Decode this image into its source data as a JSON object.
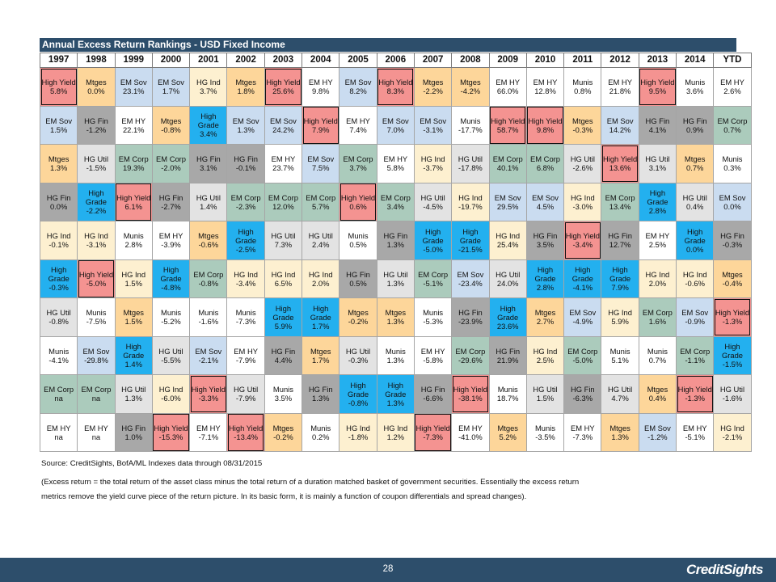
{
  "colors": {
    "High Yield": "#f49391",
    "Mtges": "#fdd69a",
    "EM Sov": "#cadcf0",
    "EM HY": "#ffffff",
    "HG Ind": "#fdf0d0",
    "High Grade": "#23b0ef",
    "HG Util": "#e3e3e3",
    "HG Fin": "#a8a8a8",
    "EM Corp": "#abcbbc",
    "Munis": "#ffffff"
  },
  "chart_data": {
    "type": "table",
    "title": "Annual Excess Return Rankings - USD Fixed Income",
    "years": [
      "1997",
      "1998",
      "1999",
      "2000",
      "2001",
      "2002",
      "2003",
      "2004",
      "2005",
      "2006",
      "2007",
      "2008",
      "2009",
      "2010",
      "2011",
      "2012",
      "2013",
      "2014",
      "YTD"
    ],
    "rows": [
      [
        [
          "High Yield",
          "5.8%"
        ],
        [
          "Mtges",
          "0.0%"
        ],
        [
          "EM Sov",
          "23.1%"
        ],
        [
          "EM Sov",
          "1.7%"
        ],
        [
          "HG Ind",
          "3.7%"
        ],
        [
          "Mtges",
          "1.8%"
        ],
        [
          "High Yield",
          "25.6%"
        ],
        [
          "EM HY",
          "9.8%"
        ],
        [
          "EM Sov",
          "8.2%"
        ],
        [
          "High Yield",
          "8.3%"
        ],
        [
          "Mtges",
          "-2.2%"
        ],
        [
          "Mtges",
          "-4.2%"
        ],
        [
          "EM HY",
          "66.0%"
        ],
        [
          "EM HY",
          "12.8%"
        ],
        [
          "Munis",
          "0.8%"
        ],
        [
          "EM HY",
          "21.8%"
        ],
        [
          "High Yield",
          "9.5%"
        ],
        [
          "Munis",
          "3.6%"
        ],
        [
          "EM HY",
          "2.6%"
        ]
      ],
      [
        [
          "EM Sov",
          "1.5%"
        ],
        [
          "HG Fin",
          "-1.2%"
        ],
        [
          "EM HY",
          "22.1%"
        ],
        [
          "Mtges",
          "-0.8%"
        ],
        [
          "High Grade",
          "3.4%"
        ],
        [
          "EM Sov",
          "1.3%"
        ],
        [
          "EM Sov",
          "24.2%"
        ],
        [
          "High Yield",
          "7.9%"
        ],
        [
          "EM HY",
          "7.4%"
        ],
        [
          "EM Sov",
          "7.0%"
        ],
        [
          "EM Sov",
          "-3.1%"
        ],
        [
          "Munis",
          "-17.7%"
        ],
        [
          "High Yield",
          "58.7%"
        ],
        [
          "High Yield",
          "9.8%"
        ],
        [
          "Mtges",
          "-0.3%"
        ],
        [
          "EM Sov",
          "14.2%"
        ],
        [
          "HG Fin",
          "4.1%"
        ],
        [
          "HG Fin",
          "0.9%"
        ],
        [
          "EM Corp",
          "0.7%"
        ]
      ],
      [
        [
          "Mtges",
          "1.3%"
        ],
        [
          "HG Util",
          "-1.5%"
        ],
        [
          "EM Corp",
          "19.3%"
        ],
        [
          "EM Corp",
          "-2.0%"
        ],
        [
          "HG Fin",
          "3.1%"
        ],
        [
          "HG Fin",
          "-0.1%"
        ],
        [
          "EM HY",
          "23.7%"
        ],
        [
          "EM Sov",
          "7.5%"
        ],
        [
          "EM Corp",
          "3.7%"
        ],
        [
          "EM HY",
          "5.8%"
        ],
        [
          "HG Ind",
          "-3.7%"
        ],
        [
          "HG Util",
          "-17.8%"
        ],
        [
          "EM Corp",
          "40.1%"
        ],
        [
          "EM Corp",
          "6.8%"
        ],
        [
          "HG Util",
          "-2.6%"
        ],
        [
          "High Yield",
          "13.6%"
        ],
        [
          "HG Util",
          "3.1%"
        ],
        [
          "Mtges",
          "0.7%"
        ],
        [
          "Munis",
          "0.3%"
        ]
      ],
      [
        [
          "HG Fin",
          "0.0%"
        ],
        [
          "High Grade",
          "-2.2%"
        ],
        [
          "High Yield",
          "6.1%"
        ],
        [
          "HG Fin",
          "-2.7%"
        ],
        [
          "HG Util",
          "1.4%"
        ],
        [
          "EM Corp",
          "-2.3%"
        ],
        [
          "EM Corp",
          "12.0%"
        ],
        [
          "EM Corp",
          "5.7%"
        ],
        [
          "High Yield",
          "0.6%"
        ],
        [
          "EM Corp",
          "3.4%"
        ],
        [
          "HG Util",
          "-4.5%"
        ],
        [
          "HG Ind",
          "-19.7%"
        ],
        [
          "EM Sov",
          "29.5%"
        ],
        [
          "EM Sov",
          "4.5%"
        ],
        [
          "HG Ind",
          "-3.0%"
        ],
        [
          "EM Corp",
          "13.4%"
        ],
        [
          "High Grade",
          "2.8%"
        ],
        [
          "HG Util",
          "0.4%"
        ],
        [
          "EM Sov",
          "0.0%"
        ]
      ],
      [
        [
          "HG Ind",
          "-0.1%"
        ],
        [
          "HG Ind",
          "-3.1%"
        ],
        [
          "Munis",
          "2.8%"
        ],
        [
          "EM HY",
          "-3.9%"
        ],
        [
          "Mtges",
          "-0.6%"
        ],
        [
          "High Grade",
          "-2.5%"
        ],
        [
          "HG Util",
          "7.3%"
        ],
        [
          "HG Util",
          "2.4%"
        ],
        [
          "Munis",
          "0.5%"
        ],
        [
          "HG Fin",
          "1.3%"
        ],
        [
          "High Grade",
          "-5.0%"
        ],
        [
          "High Grade",
          "-21.5%"
        ],
        [
          "HG Ind",
          "25.4%"
        ],
        [
          "HG Fin",
          "3.5%"
        ],
        [
          "High Yield",
          "-3.4%"
        ],
        [
          "HG Fin",
          "12.7%"
        ],
        [
          "EM HY",
          "2.5%"
        ],
        [
          "High Grade",
          "0.0%"
        ],
        [
          "HG Fin",
          "-0.3%"
        ]
      ],
      [
        [
          "High Grade",
          "-0.3%"
        ],
        [
          "High Yield",
          "-5.0%"
        ],
        [
          "HG Ind",
          "1.5%"
        ],
        [
          "High Grade",
          "-4.8%"
        ],
        [
          "EM Corp",
          "-0.8%"
        ],
        [
          "HG Ind",
          "-3.4%"
        ],
        [
          "HG Ind",
          "6.5%"
        ],
        [
          "HG Ind",
          "2.0%"
        ],
        [
          "HG Fin",
          "0.5%"
        ],
        [
          "HG Util",
          "1.3%"
        ],
        [
          "EM Corp",
          "-5.1%"
        ],
        [
          "EM Sov",
          "-23.4%"
        ],
        [
          "HG Util",
          "24.0%"
        ],
        [
          "High Grade",
          "2.8%"
        ],
        [
          "High Grade",
          "-4.1%"
        ],
        [
          "High Grade",
          "7.9%"
        ],
        [
          "HG Ind",
          "2.0%"
        ],
        [
          "HG Ind",
          "-0.6%"
        ],
        [
          "Mtges",
          "-0.4%"
        ]
      ],
      [
        [
          "HG Util",
          "-0.8%"
        ],
        [
          "Munis",
          "-7.5%"
        ],
        [
          "Mtges",
          "1.5%"
        ],
        [
          "Munis",
          "-5.2%"
        ],
        [
          "Munis",
          "-1.6%"
        ],
        [
          "Munis",
          "-7.3%"
        ],
        [
          "High Grade",
          "5.9%"
        ],
        [
          "High Grade",
          "1.7%"
        ],
        [
          "Mtges",
          "-0.2%"
        ],
        [
          "Mtges",
          "1.3%"
        ],
        [
          "Munis",
          "-5.3%"
        ],
        [
          "HG Fin",
          "-23.9%"
        ],
        [
          "High Grade",
          "23.6%"
        ],
        [
          "Mtges",
          "2.7%"
        ],
        [
          "EM Sov",
          "-4.9%"
        ],
        [
          "HG Ind",
          "5.9%"
        ],
        [
          "EM Corp",
          "1.6%"
        ],
        [
          "EM Sov",
          "-0.9%"
        ],
        [
          "High Yield",
          "-1.3%"
        ]
      ],
      [
        [
          "Munis",
          "-4.1%"
        ],
        [
          "EM Sov",
          "-29.8%"
        ],
        [
          "High Grade",
          "1.4%"
        ],
        [
          "HG Util",
          "-5.5%"
        ],
        [
          "EM Sov",
          "-2.1%"
        ],
        [
          "EM HY",
          "-7.9%"
        ],
        [
          "HG Fin",
          "4.4%"
        ],
        [
          "Mtges",
          "1.7%"
        ],
        [
          "HG Util",
          "-0.3%"
        ],
        [
          "Munis",
          "1.3%"
        ],
        [
          "EM HY",
          "-5.8%"
        ],
        [
          "EM Corp",
          "-29.6%"
        ],
        [
          "HG Fin",
          "21.9%"
        ],
        [
          "HG Ind",
          "2.5%"
        ],
        [
          "EM Corp",
          "-5.0%"
        ],
        [
          "Munis",
          "5.1%"
        ],
        [
          "Munis",
          "0.7%"
        ],
        [
          "EM Corp",
          "-1.1%"
        ],
        [
          "High Grade",
          "-1.5%"
        ]
      ],
      [
        [
          "EM Corp",
          "na"
        ],
        [
          "EM Corp",
          "na"
        ],
        [
          "HG Util",
          "1.3%"
        ],
        [
          "HG Ind",
          "-6.0%"
        ],
        [
          "High Yield",
          "-3.3%"
        ],
        [
          "HG Util",
          "-7.9%"
        ],
        [
          "Munis",
          "3.5%"
        ],
        [
          "HG Fin",
          "1.3%"
        ],
        [
          "High Grade",
          "-0.8%"
        ],
        [
          "High Grade",
          "1.3%"
        ],
        [
          "HG Fin",
          "-6.6%"
        ],
        [
          "High Yield",
          "-38.1%"
        ],
        [
          "Munis",
          "18.7%"
        ],
        [
          "HG Util",
          "1.5%"
        ],
        [
          "HG Fin",
          "-6.3%"
        ],
        [
          "HG Util",
          "4.7%"
        ],
        [
          "Mtges",
          "0.4%"
        ],
        [
          "High Yield",
          "-1.3%"
        ],
        [
          "HG Util",
          "-1.6%"
        ]
      ],
      [
        [
          "EM HY",
          "na"
        ],
        [
          "EM HY",
          "na"
        ],
        [
          "HG Fin",
          "1.0%"
        ],
        [
          "High Yield",
          "-15.3%"
        ],
        [
          "EM HY",
          "-7.1%"
        ],
        [
          "High Yield",
          "-13.4%"
        ],
        [
          "Mtges",
          "-0.2%"
        ],
        [
          "Munis",
          "0.2%"
        ],
        [
          "HG Ind",
          "-1.8%"
        ],
        [
          "HG Ind",
          "1.2%"
        ],
        [
          "High Yield",
          "-7.3%"
        ],
        [
          "EM HY",
          "-41.0%"
        ],
        [
          "Mtges",
          "5.2%"
        ],
        [
          "Munis",
          "-3.5%"
        ],
        [
          "EM HY",
          "-7.3%"
        ],
        [
          "Mtges",
          "1.3%"
        ],
        [
          "EM Sov",
          "-1.2%"
        ],
        [
          "EM HY",
          "-5.1%"
        ],
        [
          "HG Ind",
          "-2.1%"
        ]
      ]
    ]
  },
  "source": "Source: CreditSights, BofA/ML Indexes    data through 08/31/2015",
  "notes": [
    "(Excess return = the total return of the asset class minus the total return of a duration matched basket of government securities. Essentially the excess return",
    "metrics remove the yield curve piece of the return picture. In its basic form, it is mainly a function of coupon differentials and spread changes)."
  ],
  "footer": {
    "page_number": "28",
    "logo": "CreditSights"
  }
}
